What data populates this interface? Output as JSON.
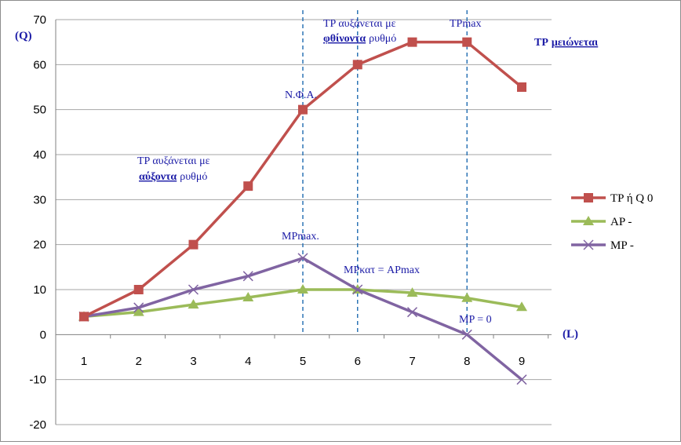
{
  "chart_data": {
    "type": "line",
    "categories": [
      "1",
      "2",
      "3",
      "4",
      "5",
      "6",
      "7",
      "8",
      "9"
    ],
    "ylim": [
      -20,
      70
    ],
    "ytick_step": 10,
    "grid": "horizontal",
    "legend_position": "right",
    "ylabel": "(Q)",
    "xlabel": "(L)",
    "series": [
      {
        "name": "TP ή Q 0",
        "color": "#c0504d",
        "marker": "square",
        "values": [
          4,
          10,
          20,
          33,
          50,
          60,
          65,
          65,
          55
        ]
      },
      {
        "name": "AP -",
        "color": "#9bbb59",
        "marker": "triangle",
        "values": [
          4,
          5,
          6.67,
          8.25,
          10,
          10,
          9.29,
          8.13,
          6.11
        ]
      },
      {
        "name": "MP -",
        "color": "#8064a2",
        "marker": "x",
        "values": [
          4,
          6,
          10,
          13,
          17,
          10,
          5,
          0,
          -10
        ]
      }
    ],
    "vlines": [
      5,
      6,
      8
    ],
    "annotations": {
      "tp_increasing_line1": "TP αυξάνεται με",
      "tp_increasing_word": "αύξοντα",
      "tp_increasing_rate": "ρυθμό",
      "tp_decel_line1": "TP αυξάνεται με",
      "tp_decel_word": "φθίνοντα",
      "tp_decel_rate": "ρυθμό",
      "tpmax": "TPmax",
      "tp_decreasing_prefix": "TP",
      "tp_decreasing_word": "μειώνεται",
      "nfa": "Ν.Φ.Α.",
      "mpmax": "MPmax.",
      "mp_eq_ap": "MPκατ = APmax",
      "mp_zero": "MP = 0"
    }
  }
}
